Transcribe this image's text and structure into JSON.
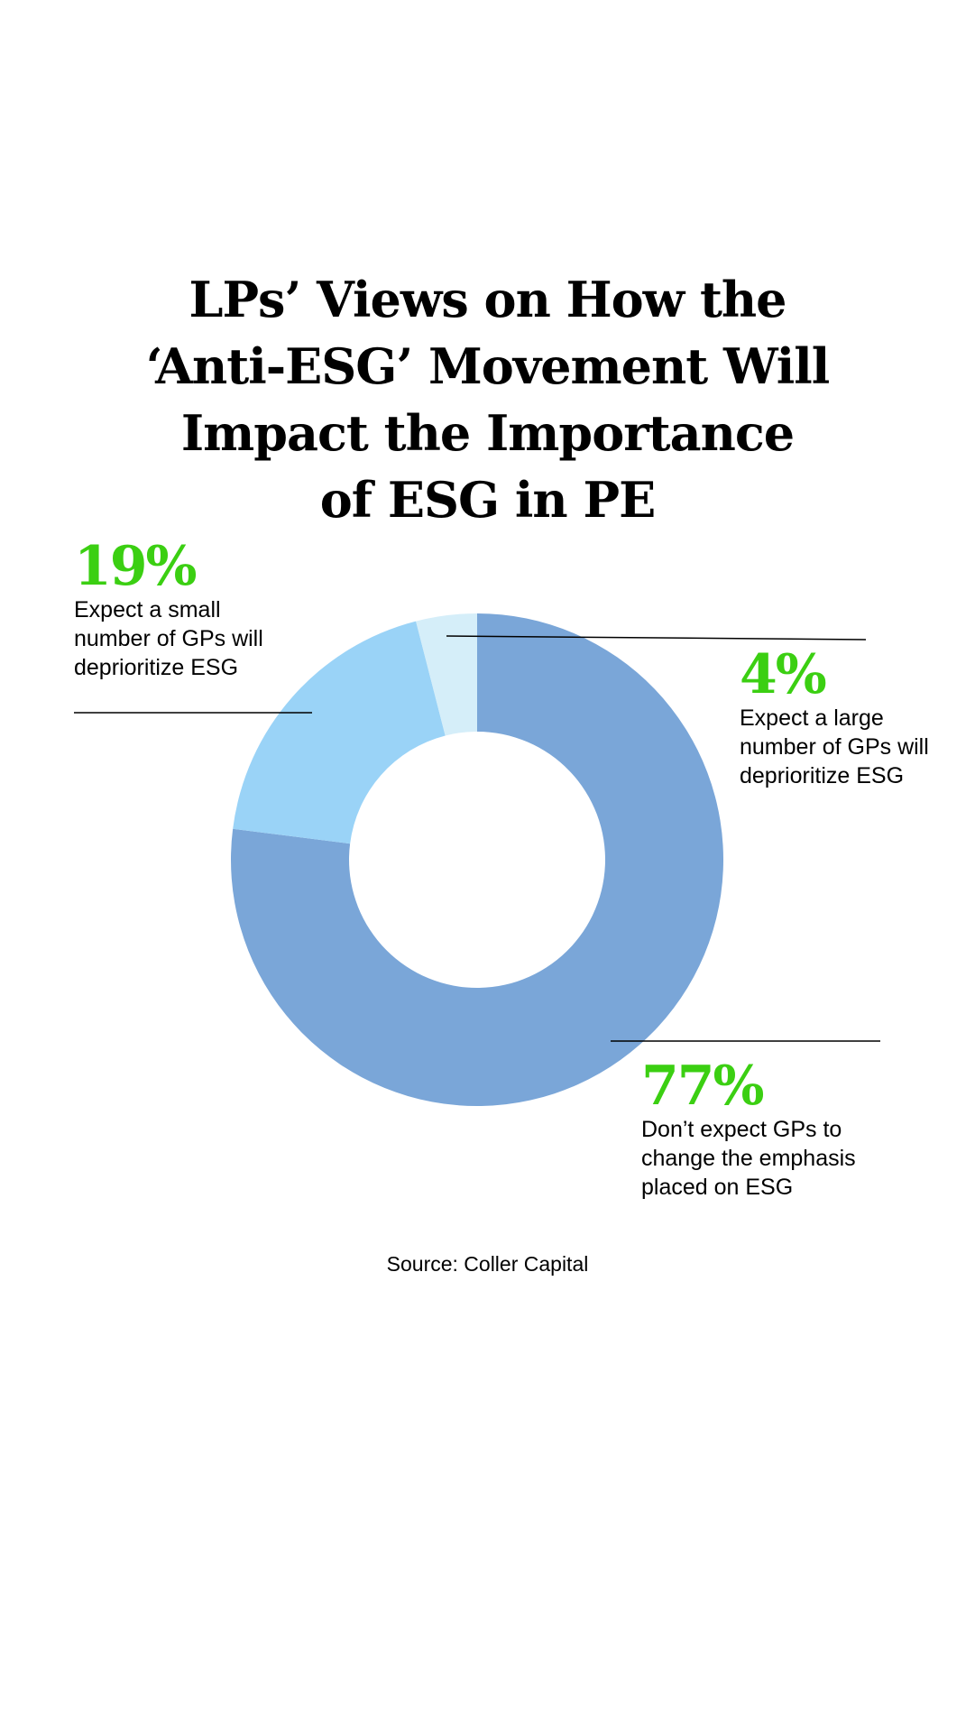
{
  "chart_data": {
    "type": "pie",
    "variant": "donut",
    "title_lines": [
      "LPs’ Views on How the",
      "‘Anti-ESG’ Movement Will",
      "Impact the Importance",
      "of ESG in PE"
    ],
    "slices": [
      {
        "value": 77,
        "label": "77%",
        "description": [
          "Don’t expect GPs to",
          "change the emphasis",
          "placed on ESG"
        ],
        "color": "#7aa6d8"
      },
      {
        "value": 19,
        "label": "19%",
        "description": [
          "Expect a small",
          "number of GPs will",
          "deprioritize ESG"
        ],
        "color": "#9ad3f7"
      },
      {
        "value": 4,
        "label": "4%",
        "description": [
          "Expect a large",
          "number of GPs will",
          "deprioritize ESG"
        ],
        "color": "#d5eef9"
      }
    ],
    "label_color": "#3bcf12",
    "source": "Source: Coller Capital"
  }
}
